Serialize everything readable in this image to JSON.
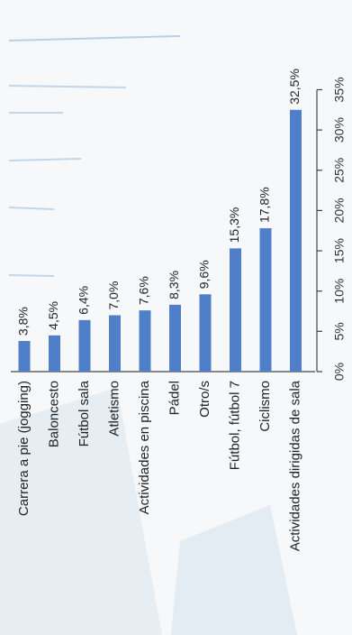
{
  "chart_data": {
    "type": "bar",
    "orientation": "vertical-bars, image rotated 90° counter-clockwise",
    "categories": [
      "Carrera a pie (jogging)",
      "Baloncesto",
      "Fútbol sala",
      "Atletismo",
      "Actividades en piscina",
      "Pádel",
      "Otro/s",
      "Fútbol, fútbol 7",
      "Ciclismo",
      "Actividades dirigidas de sala"
    ],
    "values": [
      3.8,
      4.5,
      6.4,
      7.0,
      7.6,
      8.3,
      9.6,
      15.3,
      17.8,
      32.5
    ],
    "data_labels": [
      "3,8%",
      "4,5%",
      "6,4%",
      "7,0%",
      "7,6%",
      "8,3%",
      "9,6%",
      "15,3%",
      "17,8%",
      "32,5%"
    ],
    "ylim": [
      0,
      35
    ],
    "y_ticks": [
      0,
      5,
      10,
      15,
      20,
      25,
      30,
      35
    ],
    "y_tick_labels": [
      "0%",
      "5%",
      "10%",
      "15%",
      "20%",
      "25%",
      "30%",
      "35%"
    ],
    "bar_color": "#4f7fc8",
    "grid": false,
    "title": "",
    "xlabel": "",
    "ylabel": ""
  },
  "colors": {
    "background": "#f7f8f9",
    "decoration": "#c4d9ea",
    "axis": "#444444"
  }
}
